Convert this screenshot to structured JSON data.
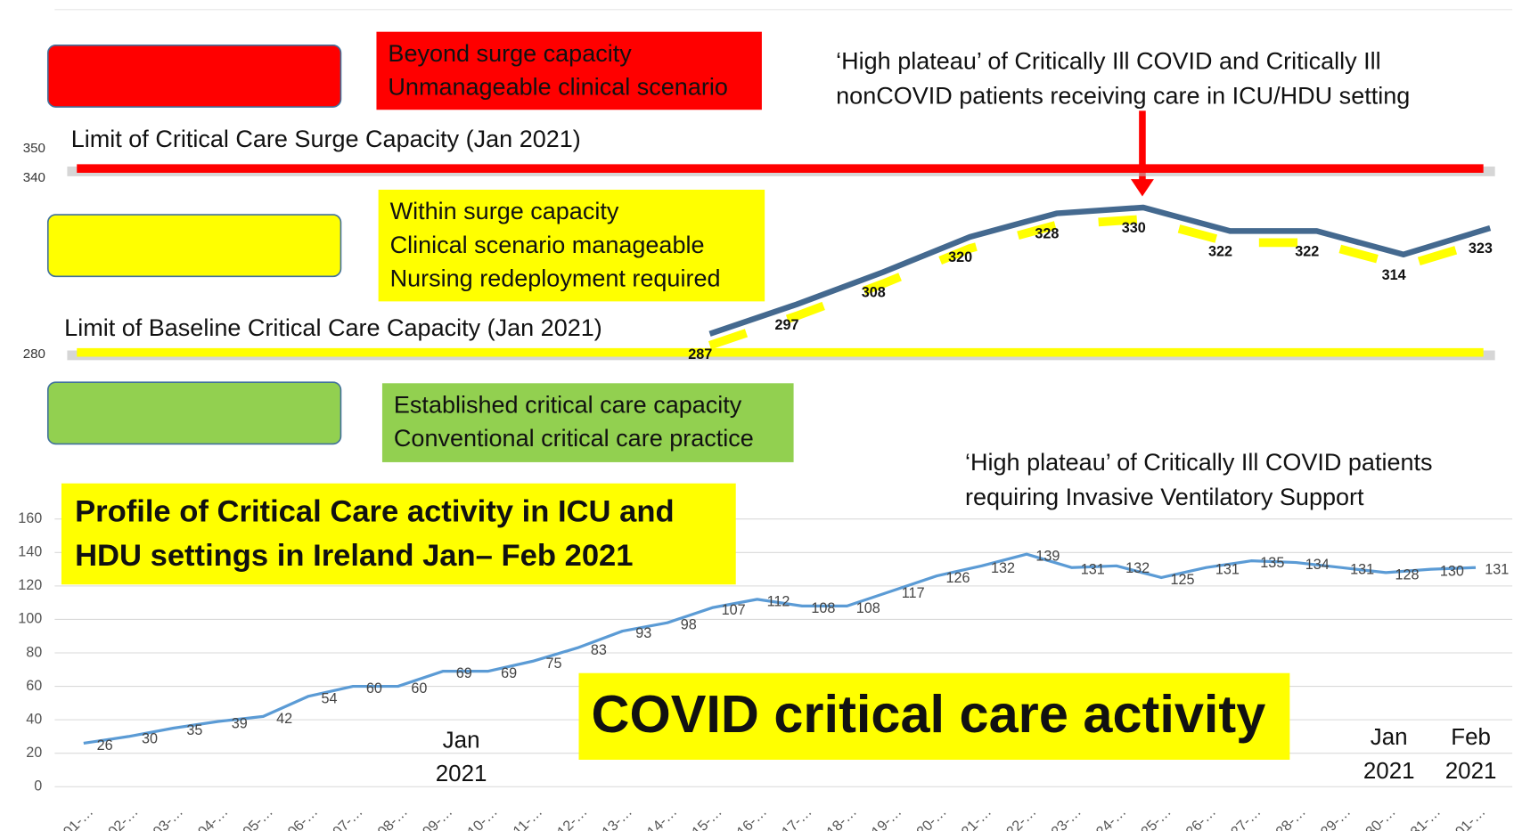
{
  "chart_data": [
    {
      "type": "line",
      "zones": [
        {
          "color": "#ff0000",
          "text": [
            "Beyond surge capacity",
            "Unmanageable clinical scenario"
          ]
        },
        {
          "color": "#ffff00",
          "text": [
            "Within surge capacity",
            "Clinical scenario manageable",
            "Nursing redeployment required"
          ]
        },
        {
          "color": "#92d050",
          "text": [
            "Established critical care capacity",
            "Conventional critical care practice"
          ]
        }
      ],
      "limits": [
        {
          "label": "Limit of Critical Care Surge Capacity (Jan 2021)",
          "color": "#ff0000"
        },
        {
          "label": "Limit of Baseline Critical Care Capacity (Jan 2021)",
          "color": "#ffff00"
        }
      ],
      "annotation": [
        "‘High plateau’ of Critically Ill COVID and Critically Ill",
        "nonCOVID patients receiving care in ICU/HDU setting"
      ],
      "categories": [
        null,
        null,
        null,
        null,
        null,
        null,
        null,
        null,
        null,
        null
      ],
      "values": [
        287,
        297,
        308,
        320,
        328,
        330,
        322,
        322,
        314,
        323
      ],
      "color": "#44698f",
      "ylim": [
        270,
        350
      ],
      "yticks": [
        280,
        340,
        350
      ]
    },
    {
      "type": "line",
      "title": [
        "Profile of Critical Care activity in ICU and",
        "HDU settings in Ireland Jan– Feb 2021"
      ],
      "subtitle": "COVID critical care activity",
      "annotation": [
        "‘High plateau’ of Critically Ill COVID patients",
        "requiring Invasive Ventilatory Support"
      ],
      "month_labels": [
        [
          "Jan",
          "2021"
        ],
        [
          "Jan",
          "2021"
        ],
        [
          "Feb",
          "2021"
        ]
      ],
      "categories": [
        "01-…",
        "02-…",
        "03-…",
        "04-…",
        "05-…",
        "06-…",
        "07-…",
        "08-…",
        "09-…",
        "10-…",
        "11-…",
        "12-…",
        "13-…",
        "14-…",
        "15-…",
        "16-…",
        "17-…",
        "18-…",
        "19-…",
        "20-…",
        "21-…",
        "22-…",
        "23-…",
        "24-…",
        "25-…",
        "26-…",
        "27-…",
        "28-…",
        "29-…",
        "30-…",
        "31-…",
        "01-…"
      ],
      "values": [
        26,
        30,
        35,
        39,
        42,
        54,
        60,
        60,
        69,
        69,
        75,
        83,
        93,
        98,
        107,
        112,
        108,
        108,
        117,
        126,
        132,
        139,
        131,
        132,
        125,
        131,
        135,
        134,
        131,
        128,
        130,
        131
      ],
      "color": "#5b9bd5",
      "ylim": [
        0,
        160
      ],
      "yticks": [
        0,
        20,
        40,
        60,
        80,
        100,
        120,
        140,
        160
      ],
      "grid": true
    }
  ]
}
